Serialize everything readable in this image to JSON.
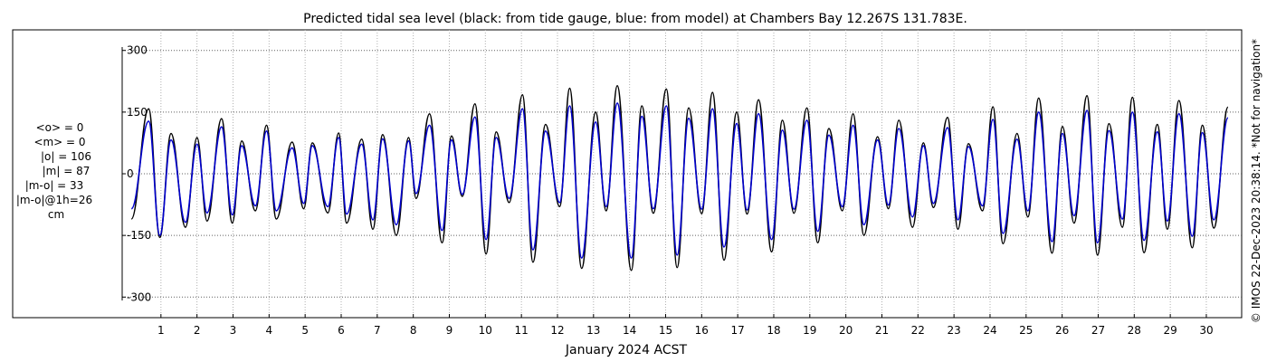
{
  "chart_data": {
    "type": "line",
    "title": "Predicted tidal sea level (black: from tide gauge, blue: from model) at Chambers Bay 12.267S 131.783E.",
    "xlabel": "January 2024 ACST",
    "ylabel": "",
    "ylim": [
      -350,
      350
    ],
    "xlim": [
      0.0,
      30.98
    ],
    "y_ticks": [
      -300,
      -150,
      0,
      150,
      300
    ],
    "y_tick_labels": [
      "-300",
      "-150",
      "0",
      "150",
      "300"
    ],
    "x_ticks": [
      1,
      2,
      3,
      4,
      5,
      6,
      7,
      8,
      9,
      10,
      11,
      12,
      13,
      14,
      15,
      16,
      17,
      18,
      19,
      20,
      21,
      22,
      23,
      24,
      25,
      26,
      27,
      28,
      29,
      30
    ],
    "x_tick_labels": [
      "1",
      "2",
      "3",
      "4",
      "5",
      "6",
      "7",
      "8",
      "9",
      "10",
      "11",
      "12",
      "13",
      "14",
      "15",
      "16",
      "17",
      "18",
      "19",
      "20",
      "21",
      "22",
      "23",
      "24",
      "25",
      "26",
      "27",
      "28",
      "29",
      "30"
    ],
    "grid": "dotted",
    "series": [
      {
        "name": "from tide gauge",
        "color": "#000000",
        "x": [
          0.18,
          0.66,
          0.97,
          1.28,
          1.68,
          2.0,
          2.28,
          2.68,
          2.98,
          3.24,
          3.62,
          3.93,
          4.2,
          4.64,
          4.96,
          5.2,
          5.63,
          5.93,
          6.15,
          6.57,
          6.88,
          7.15,
          7.53,
          7.87,
          8.08,
          8.45,
          8.8,
          9.06,
          9.36,
          9.71,
          10.02,
          10.3,
          10.66,
          11.03,
          11.32,
          11.67,
          12.06,
          12.34,
          12.67,
          13.06,
          13.35,
          13.66,
          14.05,
          14.34,
          14.66,
          15.02,
          15.32,
          15.64,
          16.0,
          16.3,
          16.62,
          16.97,
          17.26,
          17.58,
          17.94,
          18.24,
          18.56,
          18.92,
          19.22,
          19.53,
          19.9,
          20.2,
          20.5,
          20.88,
          21.18,
          21.47,
          21.85,
          22.15,
          22.43,
          22.82,
          23.11,
          23.4,
          23.79,
          24.08,
          24.36,
          24.75,
          25.05,
          25.35,
          25.72,
          26.01,
          26.33,
          26.69,
          26.98,
          27.3,
          27.67,
          27.95,
          28.27,
          28.64,
          28.92,
          29.24,
          29.61,
          29.89,
          30.21,
          30.6
        ],
        "y": [
          -110,
          158,
          -155,
          98,
          -130,
          88,
          -115,
          134,
          -120,
          80,
          -90,
          118,
          -110,
          77,
          -85,
          75,
          -95,
          99,
          -120,
          84,
          -135,
          95,
          -150,
          88,
          -60,
          146,
          -168,
          92,
          -55,
          170,
          -195,
          102,
          -70,
          192,
          -215,
          120,
          -80,
          208,
          -230,
          150,
          -90,
          214,
          -235,
          165,
          -96,
          206,
          -228,
          160,
          -97,
          198,
          -210,
          150,
          -98,
          180,
          -190,
          130,
          -96,
          160,
          -168,
          110,
          -90,
          146,
          -150,
          90,
          -85,
          130,
          -130,
          75,
          -82,
          137,
          -135,
          73,
          -90,
          163,
          -170,
          98,
          -105,
          184,
          -193,
          115,
          -120,
          190,
          -198,
          122,
          -130,
          186,
          -192,
          120,
          -135,
          178,
          -180,
          118,
          -132,
          162
        ]
      },
      {
        "name": "from model",
        "color": "#0000cc",
        "x": [
          0.18,
          0.66,
          0.97,
          1.28,
          1.68,
          2.0,
          2.28,
          2.68,
          2.98,
          3.24,
          3.62,
          3.93,
          4.2,
          4.64,
          4.96,
          5.2,
          5.63,
          5.93,
          6.15,
          6.57,
          6.88,
          7.15,
          7.53,
          7.87,
          8.08,
          8.45,
          8.8,
          9.06,
          9.36,
          9.71,
          10.02,
          10.3,
          10.66,
          11.03,
          11.32,
          11.67,
          12.06,
          12.34,
          12.67,
          13.06,
          13.35,
          13.66,
          14.05,
          14.34,
          14.66,
          15.02,
          15.32,
          15.64,
          16.0,
          16.3,
          16.62,
          16.97,
          17.26,
          17.58,
          17.94,
          18.24,
          18.56,
          18.92,
          19.22,
          19.53,
          19.9,
          20.2,
          20.5,
          20.88,
          21.18,
          21.47,
          21.85,
          22.15,
          22.43,
          22.82,
          23.11,
          23.4,
          23.79,
          24.08,
          24.36,
          24.75,
          25.05,
          25.35,
          25.72,
          26.01,
          26.33,
          26.69,
          26.98,
          27.3,
          27.67,
          27.95,
          28.27,
          28.64,
          28.92,
          29.24,
          29.61,
          29.89,
          30.21,
          30.6
        ],
        "y": [
          -85,
          128,
          -150,
          82,
          -118,
          72,
          -95,
          114,
          -100,
          68,
          -78,
          104,
          -90,
          63,
          -72,
          68,
          -80,
          88,
          -98,
          72,
          -112,
          85,
          -124,
          80,
          -48,
          118,
          -138,
          82,
          -50,
          138,
          -160,
          88,
          -60,
          158,
          -185,
          104,
          -70,
          165,
          -205,
          126,
          -80,
          172,
          -205,
          140,
          -85,
          165,
          -198,
          135,
          -86,
          158,
          -178,
          122,
          -88,
          146,
          -160,
          106,
          -86,
          130,
          -140,
          94,
          -80,
          118,
          -124,
          82,
          -76,
          110,
          -105,
          68,
          -72,
          112,
          -112,
          66,
          -78,
          132,
          -145,
          84,
          -90,
          150,
          -165,
          98,
          -102,
          154,
          -168,
          105,
          -110,
          150,
          -162,
          102,
          -115,
          146,
          -152,
          100,
          -112,
          136
        ]
      }
    ]
  },
  "stats": {
    "lines": [
      "<o> = 0",
      "<m> = 0",
      "|o| = 106",
      "|m| = 87",
      "|m-o| = 33",
      "|m-o|@1h=26",
      "cm"
    ]
  },
  "credit": "© IMOS 22-Dec-2023 20:38:14. *Not for navigation*"
}
